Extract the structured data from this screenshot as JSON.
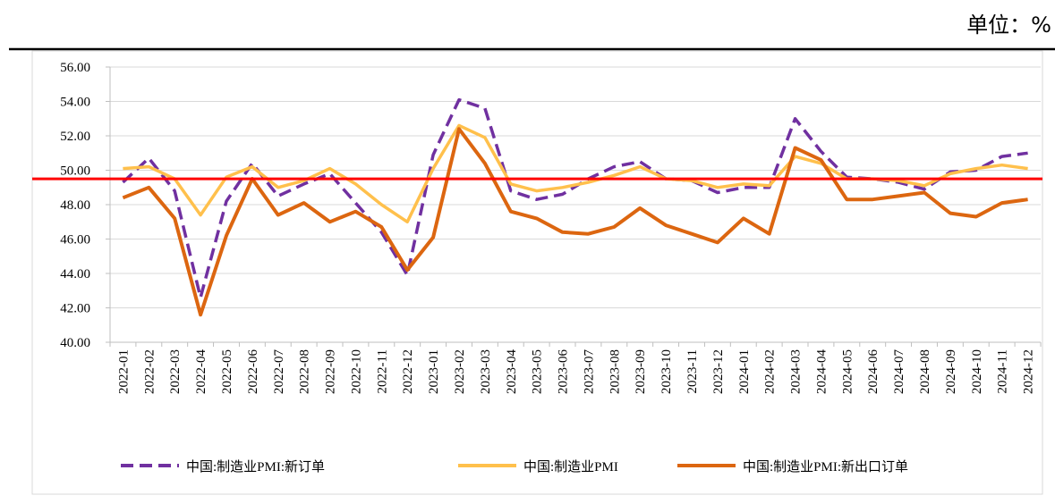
{
  "chart_data": {
    "type": "line",
    "unit_label": "单位：%",
    "categories": [
      "2022-01",
      "2022-02",
      "2022-03",
      "2022-04",
      "2022-05",
      "2022-06",
      "2022-07",
      "2022-08",
      "2022-09",
      "2022-10",
      "2022-11",
      "2022-12",
      "2023-01",
      "2023-02",
      "2023-03",
      "2023-04",
      "2023-05",
      "2023-06",
      "2023-07",
      "2023-08",
      "2023-09",
      "2023-10",
      "2023-11",
      "2023-12",
      "2024-01",
      "2024-02",
      "2024-03",
      "2024-04",
      "2024-05",
      "2024-06",
      "2024-07",
      "2024-08",
      "2024-09",
      "2024-10",
      "2024-11",
      "2024-12"
    ],
    "series": [
      {
        "name": "中国:制造业PMI:新订单",
        "color": "#7030a0",
        "line_style": "dashed",
        "values": [
          49.3,
          50.7,
          48.8,
          42.6,
          48.2,
          50.4,
          48.5,
          49.2,
          49.8,
          48.1,
          46.4,
          43.9,
          50.9,
          54.1,
          53.6,
          48.8,
          48.3,
          48.6,
          49.5,
          50.2,
          50.5,
          49.5,
          49.4,
          48.7,
          49.0,
          49.0,
          53.0,
          51.1,
          49.6,
          49.5,
          49.3,
          48.9,
          49.9,
          50.0,
          50.8,
          51.0
        ]
      },
      {
        "name": "中国:制造业PMI",
        "color": "#ffc04c",
        "line_style": "solid",
        "values": [
          50.1,
          50.2,
          49.5,
          47.4,
          49.6,
          50.2,
          49.0,
          49.4,
          50.1,
          49.2,
          48.0,
          47.0,
          50.1,
          52.6,
          51.9,
          49.2,
          48.8,
          49.0,
          49.3,
          49.7,
          50.2,
          49.5,
          49.4,
          49.0,
          49.2,
          49.1,
          50.8,
          50.4,
          49.5,
          49.5,
          49.4,
          49.1,
          49.8,
          50.1,
          50.3,
          50.1
        ]
      },
      {
        "name": "中国:制造业PMI:新出口订单",
        "color": "#dc6610",
        "line_style": "solid",
        "values": [
          48.4,
          49.0,
          47.2,
          41.6,
          46.2,
          49.5,
          47.4,
          48.1,
          47.0,
          47.6,
          46.7,
          44.2,
          46.1,
          52.4,
          50.4,
          47.6,
          47.2,
          46.4,
          46.3,
          46.7,
          47.8,
          46.8,
          46.3,
          45.8,
          47.2,
          46.3,
          51.3,
          50.6,
          48.3,
          48.3,
          48.5,
          48.7,
          47.5,
          47.3,
          48.1,
          48.3
        ]
      }
    ],
    "reference_line": {
      "value": 49.5,
      "color": "#ff0000"
    },
    "ylim": [
      40,
      56
    ],
    "yticks": [
      {
        "value": 40,
        "label": "40.00"
      },
      {
        "value": 42,
        "label": "42.00"
      },
      {
        "value": 44,
        "label": "44.00"
      },
      {
        "value": 46,
        "label": "46.00"
      },
      {
        "value": 48,
        "label": "48.00"
      },
      {
        "value": 50,
        "label": "50.00"
      },
      {
        "value": 52,
        "label": "52.00"
      },
      {
        "value": 54,
        "label": "54.00"
      },
      {
        "value": 56,
        "label": "56.00"
      }
    ],
    "grid": true,
    "legend": "bottom"
  }
}
